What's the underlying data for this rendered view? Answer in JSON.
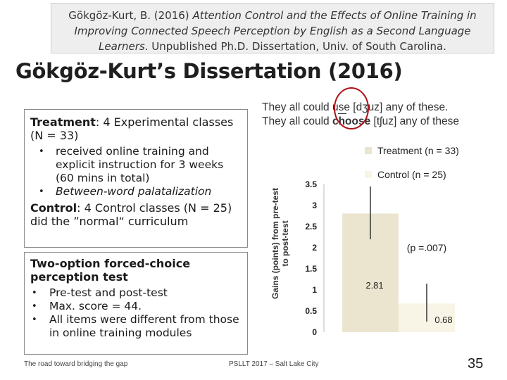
{
  "citation": {
    "line1_pre": "Gökgöz-Kurt, B. (2016) ",
    "line1_italic": "Attention Control and the Effects of Online Training in",
    "line2_italic": "Improving Connected Speech Perception by English as a Second Language",
    "line3_italic": "Learners",
    "line3_post": ". Unpublished Ph.D. Dissertation,  Univ. of South Carolina."
  },
  "title": "Gökgöz-Kurt’s Dissertation (2016)",
  "box1": {
    "treatment_label": "Treatment",
    "treatment_text": ": 4 Experimental classes (N = 33)",
    "bullets": [
      "received online training and explicit instruction for 3 weeks (60 mins in total)",
      "Between-word palatalization"
    ],
    "control_label": "Control",
    "control_text": ": 4 Control classes (N = 25) did the ”normal“ curriculum"
  },
  "box2": {
    "heading": "Two-option forced-choice perception test",
    "bullets": [
      "Pre-test and post-test",
      "Max. score = 44.",
      "All items were different from those in online training modules"
    ]
  },
  "right_header": {
    "line1_pre": "They all could ",
    "line1_use": "use",
    "line1_post": " [dʒuz] any of these.",
    "line2_pre": "They all could ",
    "line2_choose": "choose",
    "line2_post": " [tʃuz] any of these"
  },
  "chart_data": {
    "type": "bar",
    "categories": [
      "Treatment (n = 33)",
      "Control  (n = 25)"
    ],
    "values": [
      2.81,
      0.68
    ],
    "value_labels": [
      "2.81",
      "0.68"
    ],
    "error_bars": [
      [
        2.2,
        3.45
      ],
      [
        0.25,
        1.15
      ]
    ],
    "colors": [
      "#ebe5cf",
      "#f8f5e6"
    ],
    "ylabel": "Gains (points) from pre-test to post-test",
    "ylim": [
      0,
      3.5
    ],
    "yticks": [
      "0",
      "0.5",
      "1",
      "1.5",
      "2",
      "2.5",
      "3",
      "3.5"
    ],
    "annotation": "(p =.007)",
    "grid": false,
    "legend": "top-right"
  },
  "footer": {
    "left": "The road toward bridging the gap",
    "center": "PSLLT 2017 – Salt Lake City",
    "page": "35"
  }
}
